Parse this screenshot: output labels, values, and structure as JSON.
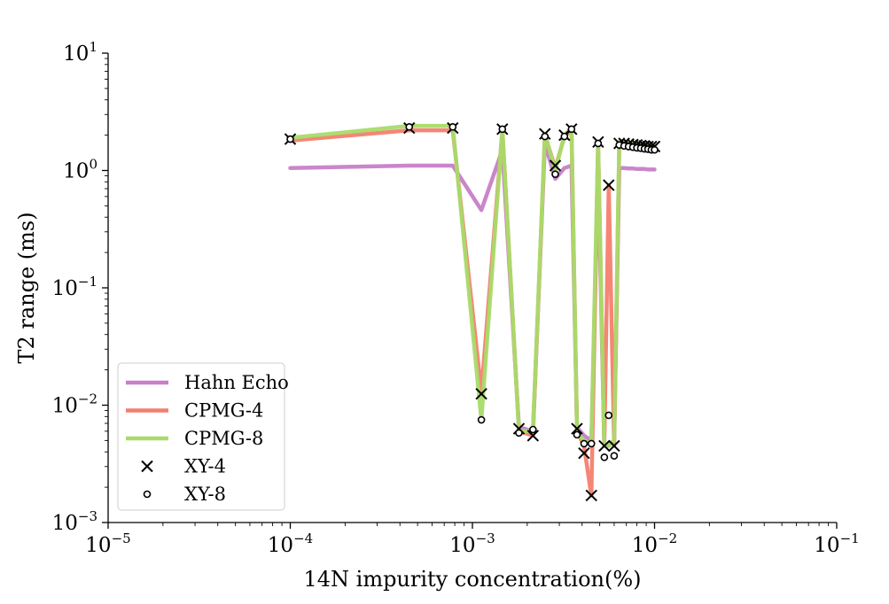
{
  "chart_data": {
    "type": "line",
    "xlabel": "14N impurity concentration(%)",
    "ylabel": "T2 range (ms)",
    "x_scale": "log",
    "y_scale": "log",
    "xlim": [
      1e-05,
      0.1
    ],
    "ylim": [
      0.001,
      10
    ],
    "x_ticks": [
      {
        "base": "10",
        "exp": "−5"
      },
      {
        "base": "10",
        "exp": "−4"
      },
      {
        "base": "10",
        "exp": "−3"
      },
      {
        "base": "10",
        "exp": "−2"
      },
      {
        "base": "10",
        "exp": "−1"
      }
    ],
    "y_ticks": [
      {
        "base": "10",
        "exp": "1"
      },
      {
        "base": "10",
        "exp": "0"
      },
      {
        "base": "10",
        "exp": "−1"
      },
      {
        "base": "10",
        "exp": "−2"
      },
      {
        "base": "10",
        "exp": "−3"
      }
    ],
    "legend_position": "lower-left",
    "grid": false,
    "x": [
      0.0001,
      0.00045,
      0.00078,
      0.00112,
      0.00146,
      0.0018,
      0.00215,
      0.0025,
      0.00285,
      0.0032,
      0.0035,
      0.00375,
      0.0041,
      0.0045,
      0.0049,
      0.0053,
      0.0056,
      0.006,
      0.0064,
      0.0068,
      0.0072,
      0.0076,
      0.008,
      0.0084,
      0.0088,
      0.0092,
      0.0096,
      0.01
    ],
    "series": [
      {
        "name": "Hahn Echo",
        "kind": "line",
        "color": "#c77fc7",
        "values": [
          1.05,
          1.1,
          1.1,
          0.46,
          1.5,
          0.0065,
          0.006,
          1.7,
          0.85,
          1.05,
          1.1,
          0.0065,
          0.0055,
          0.005,
          1.0,
          0.0045,
          0.0045,
          0.005,
          1.05,
          1.05,
          1.04,
          1.04,
          1.03,
          1.03,
          1.03,
          1.02,
          1.02,
          1.02
        ]
      },
      {
        "name": "CPMG-4",
        "kind": "line",
        "color": "#f47f6f",
        "values": [
          1.8,
          2.2,
          2.2,
          0.013,
          2.2,
          0.006,
          0.0055,
          2.0,
          1.05,
          1.95,
          2.2,
          0.006,
          0.0045,
          0.0017,
          1.7,
          0.0045,
          0.75,
          0.0045,
          1.65,
          1.65,
          1.62,
          1.6,
          1.6,
          1.58,
          1.58,
          1.56,
          1.55,
          1.55
        ]
      },
      {
        "name": "CPMG-8",
        "kind": "line",
        "color": "#a8db6a",
        "values": [
          1.9,
          2.4,
          2.4,
          0.0075,
          2.25,
          0.006,
          0.006,
          2.05,
          1.0,
          2.0,
          2.3,
          0.0058,
          0.005,
          0.0047,
          1.75,
          0.0045,
          0.0045,
          0.005,
          1.75,
          1.72,
          1.7,
          1.68,
          1.66,
          1.64,
          1.62,
          1.6,
          1.6,
          1.6
        ]
      },
      {
        "name": "XY-4",
        "kind": "markers-x",
        "color": "#000000",
        "values": [
          1.85,
          2.3,
          2.3,
          0.0125,
          2.25,
          0.0063,
          0.0055,
          2.05,
          1.1,
          2.0,
          2.25,
          0.0063,
          0.0039,
          0.0017,
          1.75,
          0.0045,
          0.75,
          0.0045,
          1.7,
          1.7,
          1.68,
          1.66,
          1.65,
          1.63,
          1.62,
          1.6,
          1.6,
          1.6
        ]
      },
      {
        "name": "XY-8",
        "kind": "markers-o",
        "color": "#000000",
        "values": [
          1.85,
          2.35,
          2.35,
          0.0075,
          2.25,
          0.0058,
          0.0062,
          1.95,
          0.93,
          1.95,
          2.25,
          0.0056,
          0.0047,
          0.0047,
          1.7,
          0.0036,
          0.0082,
          0.0037,
          1.65,
          1.62,
          1.6,
          1.58,
          1.56,
          1.55,
          1.53,
          1.52,
          1.5,
          1.5
        ]
      }
    ]
  }
}
